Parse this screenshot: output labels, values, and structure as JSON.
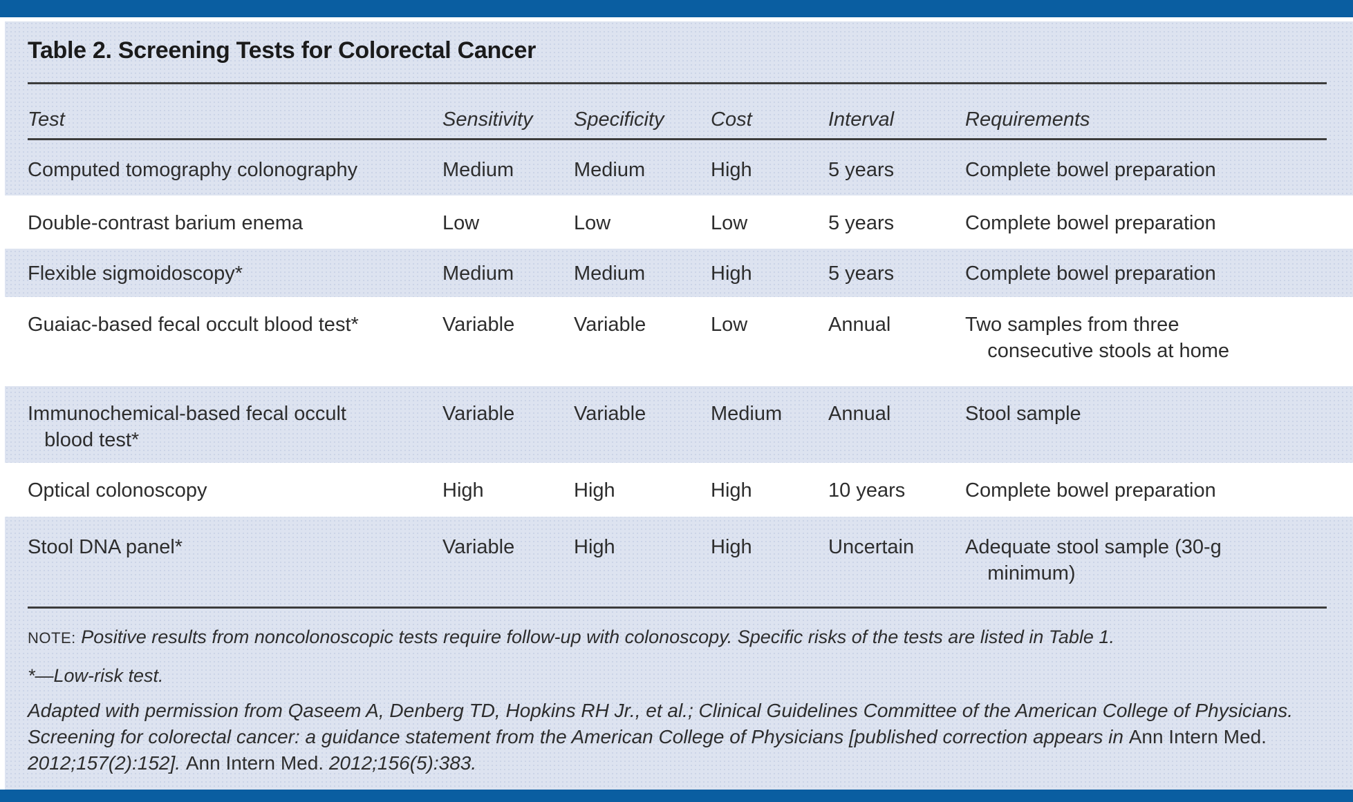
{
  "page": {
    "title": "Table 2. Screening Tests for Colorectal Cancer"
  },
  "table": {
    "columns": [
      "Test",
      "Sensitivity",
      "Specificity",
      "Cost",
      "Interval",
      "Requirements"
    ],
    "rows": [
      {
        "test": "Computed tomography colonography",
        "sensitivity": "Medium",
        "specificity": "Medium",
        "cost": "High",
        "interval": "5 years",
        "requirements": "Complete bowel preparation"
      },
      {
        "test": "Double-contrast barium enema",
        "sensitivity": "Low",
        "specificity": "Low",
        "cost": "Low",
        "interval": "5 years",
        "requirements": "Complete bowel preparation"
      },
      {
        "test": "Flexible sigmoidoscopy*",
        "sensitivity": "Medium",
        "specificity": "Medium",
        "cost": "High",
        "interval": "5 years",
        "requirements": "Complete bowel preparation"
      },
      {
        "test": "Guaiac-based fecal occult blood test*",
        "sensitivity": "Variable",
        "specificity": "Variable",
        "cost": "Low",
        "interval": "Annual",
        "requirements": "Two samples from three\n    consecutive stools at home"
      },
      {
        "test": "Immunochemical-based fecal occult\n   blood test*",
        "sensitivity": "Variable",
        "specificity": "Variable",
        "cost": "Medium",
        "interval": "Annual",
        "requirements": "Stool sample"
      },
      {
        "test": "Optical colonoscopy",
        "sensitivity": "High",
        "specificity": "High",
        "cost": "High",
        "interval": "10 years",
        "requirements": "Complete bowel preparation"
      },
      {
        "test": "Stool DNA panel*",
        "sensitivity": "Variable",
        "specificity": "High",
        "cost": "High",
        "interval": "Uncertain",
        "requirements": "Adequate stool sample (30-g\n    minimum)"
      }
    ]
  },
  "footer": {
    "note_label": "NOTE:",
    "note_text": "Positive results from noncolonoscopic tests require follow-up with colonoscopy. Specific risks of the tests are listed in Table 1.",
    "footnote": "*—Low-risk test.",
    "attribution_segments": [
      {
        "text": "Adapted with permission from Qaseem A, Denberg TD, Hopkins RH Jr., et al.; Clinical Guidelines Committee of the American College of Physicians.",
        "italic": true
      },
      {
        "break": true
      },
      {
        "text": "Screening for colorectal cancer: a guidance statement from the American College of Physicians [published correction appears in ",
        "italic": true
      },
      {
        "text": "Ann Intern Med.",
        "italic": false
      },
      {
        "break": true
      },
      {
        "text": "2012;157(2):152]. ",
        "italic": true
      },
      {
        "text": "Ann Intern Med. ",
        "italic": false
      },
      {
        "text": "2012;156(5):383.",
        "italic": true
      }
    ]
  },
  "colors": {
    "bar_blue": "#0a5ea1",
    "panel_bg": "#dde3f0",
    "row_white": "#ffffff",
    "text": "#2d2d2d",
    "rule": "#3c3c3c"
  }
}
